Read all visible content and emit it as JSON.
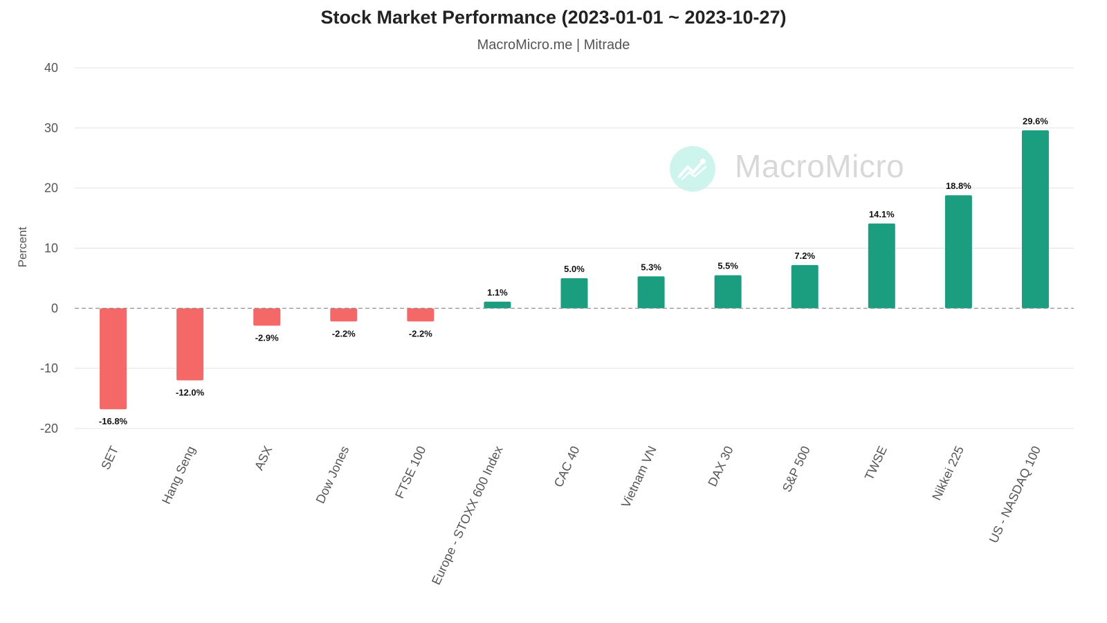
{
  "chart_data": {
    "type": "bar",
    "title": "Stock Market Performance (2023-01-01 ~ 2023-10-27)",
    "subtitle": "MacroMicro.me | Mitrade",
    "ylabel": "Percent",
    "xlabel": "",
    "ylim": [
      -20,
      40
    ],
    "yticks": [
      40,
      30,
      20,
      10,
      0,
      -10,
      -20
    ],
    "grid": true,
    "categories": [
      "SET",
      "Hang Seng",
      "ASX",
      "Dow Jones",
      "FTSE 100",
      "Europe - STOXX 600 Index",
      "CAC 40",
      "Vietnam VN",
      "DAX 30",
      "S&P 500",
      "TWSE",
      "Nikkei 225",
      "US - NASDAQ 100"
    ],
    "values": [
      -16.8,
      -12.0,
      -2.9,
      -2.2,
      -2.2,
      1.1,
      5.0,
      5.3,
      5.5,
      7.2,
      14.1,
      18.8,
      29.6
    ],
    "data_labels": [
      "-16.8%",
      "-12.0%",
      "-2.9%",
      "-2.2%",
      "-2.2%",
      "1.1%",
      "5.0%",
      "5.3%",
      "5.5%",
      "7.2%",
      "14.1%",
      "18.8%",
      "29.6%"
    ],
    "colors": {
      "positive": "#1a9e7f",
      "negative": "#f46868",
      "grid": "#e3e3e3",
      "zero_line": "#888888"
    }
  },
  "watermark": {
    "text": "MacroMicro",
    "icon": "macromicro-logo-icon"
  }
}
